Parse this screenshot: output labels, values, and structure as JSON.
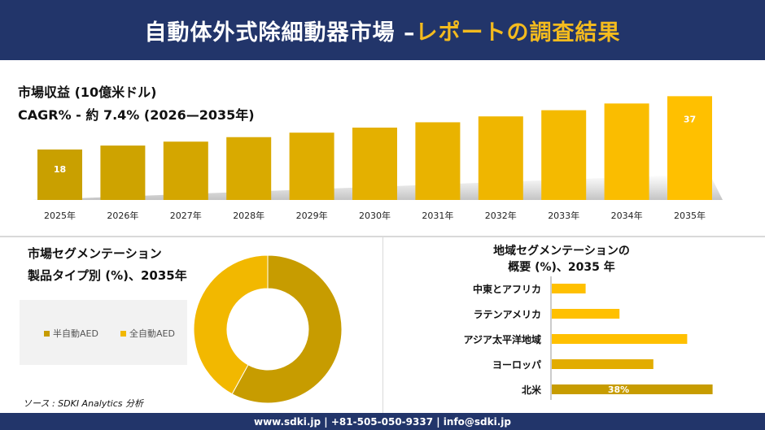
{
  "header": {
    "title_main": "自動体外式除細動器市場 –",
    "title_accent": "レポートの調査結果"
  },
  "metrics": {
    "line1": "市場収益 (10億米ドル)",
    "line2": "CAGR% - 約 7.4% (2026—2035年)"
  },
  "segmentation": {
    "title_line1": "市場セグメンテーション",
    "title_line2": "製品タイプ別 (%)、2035年"
  },
  "regional": {
    "title_line1": "地域セグメンテーションの",
    "title_line2": "概要 (%)、2035 年"
  },
  "source": "ソース : SDKI Analytics 分析",
  "footer": "www.sdki.jp | +81-505-050-9337 | info@sdki.jp",
  "colors": {
    "navy": "#22356a",
    "accent": "#f4bb1e",
    "gold_dark": "#c9a000",
    "gold_light": "#ffc000"
  },
  "chart_data": [
    {
      "type": "bar",
      "categories": [
        "2025年",
        "2026年",
        "2027年",
        "2028年",
        "2029年",
        "2030年",
        "2031年",
        "2032年",
        "2033年",
        "2034年",
        "2035年"
      ],
      "values": [
        18,
        19.4,
        20.8,
        22.4,
        24.0,
        25.8,
        27.7,
        29.8,
        32.0,
        34.4,
        37
      ],
      "data_labels": {
        "0": "18",
        "10": "37"
      },
      "title": "市場収益 (10億米ドル)",
      "ylim": [
        0,
        40
      ]
    },
    {
      "type": "pie",
      "categories": [
        "半自動AED",
        "全自動AED"
      ],
      "values": [
        58,
        42
      ],
      "colors": [
        "#c79c00",
        "#f2b800"
      ],
      "title": "製品タイプ別 (%)、2035年"
    },
    {
      "type": "bar",
      "orientation": "horizontal",
      "categories": [
        "中東とアフリカ",
        "ラテンアメリカ",
        "アジア太平洋地域",
        "ヨーロッパ",
        "北米"
      ],
      "values": [
        8,
        16,
        32,
        24,
        38
      ],
      "data_labels": {
        "4": "38%"
      },
      "colors": [
        "#ffc000",
        "#ffc000",
        "#ffc000",
        "#e2ac00",
        "#c79c00"
      ],
      "title": "地域セグメンテーションの概要 (%)、2035 年"
    }
  ]
}
